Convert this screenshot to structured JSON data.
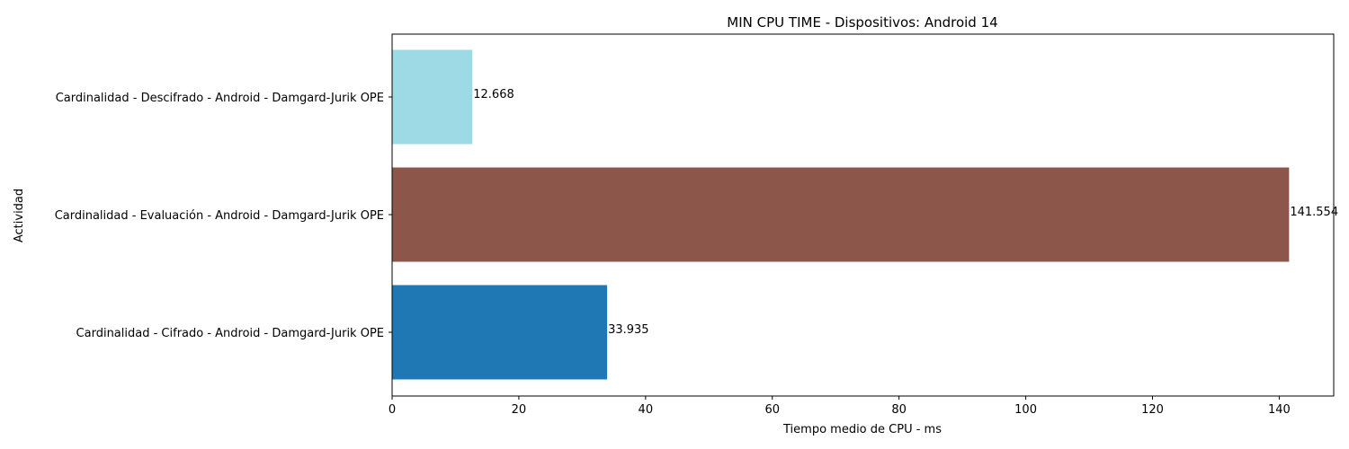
{
  "chart_data": {
    "type": "bar",
    "orientation": "horizontal",
    "title": "MIN CPU TIME - Dispositivos: Android 14",
    "xlabel": "Tiempo medio de CPU - ms",
    "ylabel": "Actividad",
    "xlim": [
      0,
      148.6
    ],
    "xticks": [
      0,
      20,
      40,
      60,
      80,
      100,
      120,
      140
    ],
    "grid": false,
    "legend": "none",
    "categories": [
      "Cardinalidad - Cifrado - Android - Damgard-Jurik OPE",
      "Cardinalidad - Evaluación - Android - Damgard-Jurik OPE",
      "Cardinalidad - Descifrado - Android - Damgard-Jurik OPE"
    ],
    "values": [
      33.935,
      141.554,
      12.668
    ],
    "value_labels": [
      "33.935",
      "141.554",
      "12.668"
    ],
    "colors": [
      "#1f77b4",
      "#8c564b",
      "#9edae5"
    ]
  }
}
